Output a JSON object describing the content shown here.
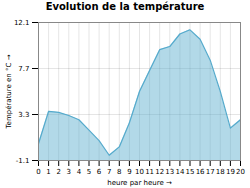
{
  "chart_data": {
    "type": "area",
    "title": "Evolution de la température",
    "xlabel": "heure par heure",
    "ylabel": "Température en °C",
    "x": [
      0,
      1,
      2,
      3,
      4,
      5,
      6,
      7,
      8,
      9,
      10,
      11,
      12,
      13,
      14,
      15,
      16,
      17,
      18,
      19,
      20
    ],
    "values": [
      0.5,
      3.6,
      3.5,
      3.2,
      2.8,
      1.8,
      0.8,
      -0.6,
      0.2,
      2.5,
      5.5,
      7.5,
      9.5,
      9.8,
      11.0,
      11.4,
      10.5,
      8.5,
      5.5,
      2.0,
      2.8
    ],
    "color": "#55aacc",
    "xlim": [
      0,
      20
    ],
    "xticks": [
      0,
      1,
      2,
      3,
      4,
      5,
      6,
      7,
      8,
      9,
      10,
      11,
      12,
      13,
      14,
      15,
      16,
      17,
      18,
      19,
      20
    ],
    "ylim": [
      -1.1,
      12.1
    ],
    "yticks": [
      -1.1,
      3.3,
      7.7,
      12.1
    ],
    "grid": true
  }
}
